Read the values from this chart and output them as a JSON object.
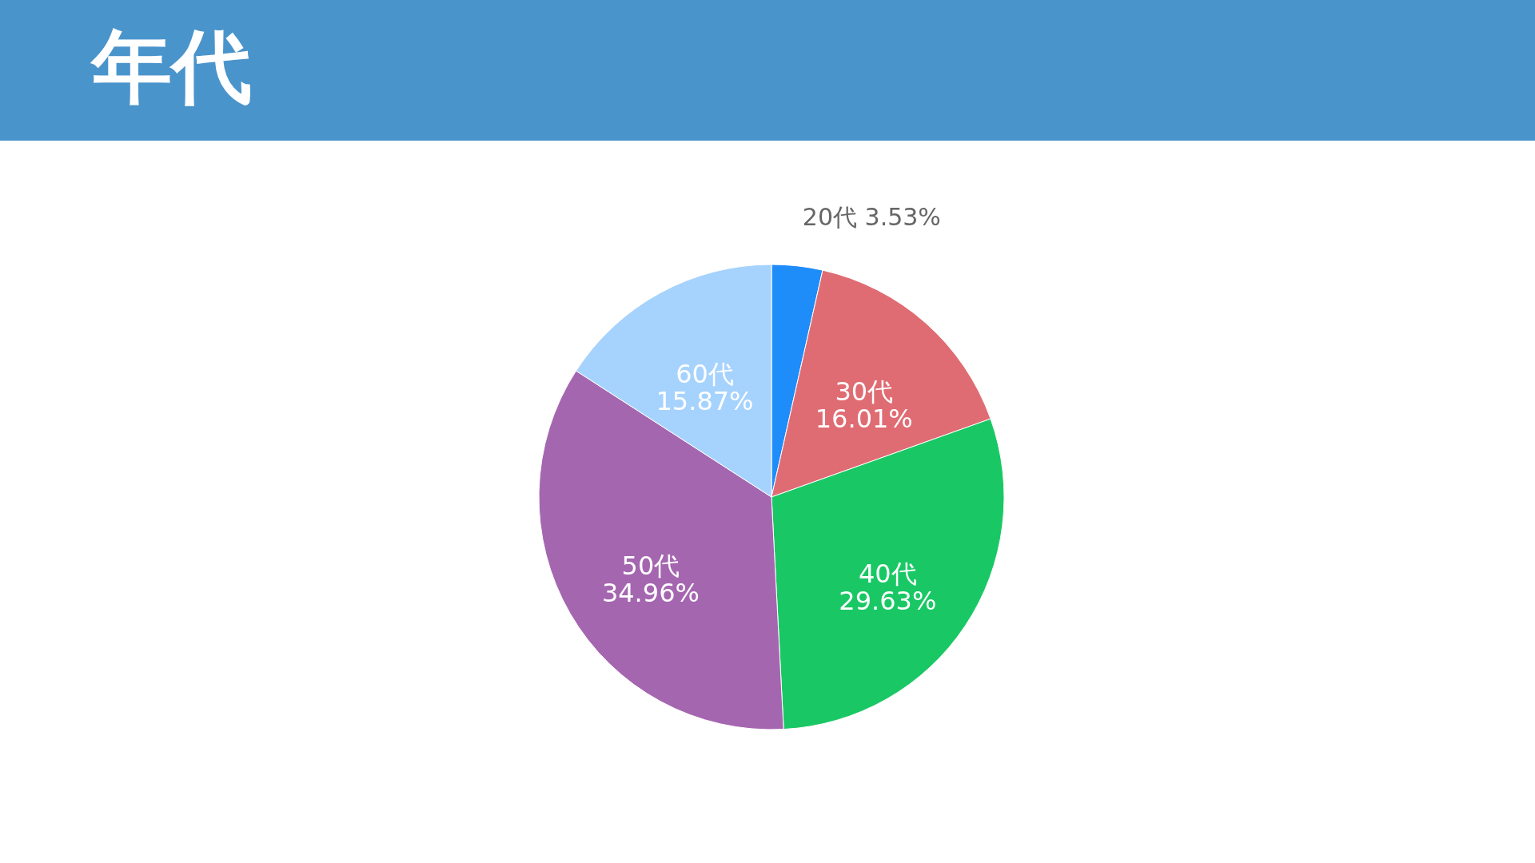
{
  "chart_data": {
    "type": "pie",
    "title": "年代",
    "categories": [
      "20代",
      "30代",
      "40代",
      "50代",
      "60代"
    ],
    "values": [
      3.53,
      16.01,
      29.63,
      34.96,
      15.87
    ],
    "value_labels": [
      "3.53%",
      "16.01%",
      "29.63%",
      "34.96%",
      "15.87%"
    ],
    "colors": [
      "#1e8cf9",
      "#e06c73",
      "#19c864",
      "#a566b0",
      "#a6d3fd"
    ]
  }
}
